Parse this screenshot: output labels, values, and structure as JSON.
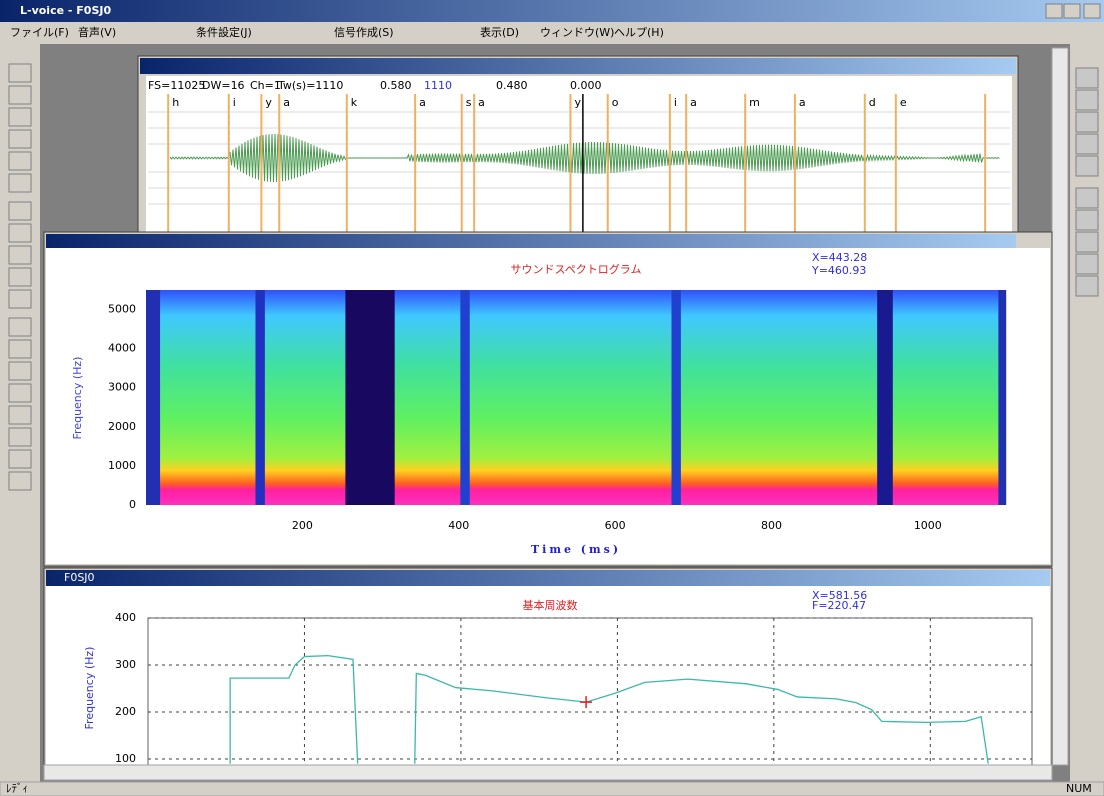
{
  "window": {
    "title": "L-voice - F0SJ0",
    "menu": [
      "ファイル(F)",
      "音声(V)",
      "条件設定(J)",
      "信号作成(S)",
      "表示(D)",
      "ウィンドウ(W)",
      "ヘルプ(H)"
    ],
    "status": "ﾚﾃﾞｨ",
    "status_right": "NUM"
  },
  "waveform": {
    "info": [
      "FS=11025",
      "DW=16",
      "Ch=1",
      "Tw(s)=1110",
      "0.580",
      "1110",
      "0.480",
      "0.000"
    ],
    "xlim": [
      0,
      1110
    ],
    "phonemes": [
      {
        "t": 26,
        "label": "h"
      },
      {
        "t": 104,
        "label": "i"
      },
      {
        "t": 146,
        "label": "y"
      },
      {
        "t": 169,
        "label": "a"
      },
      {
        "t": 256,
        "label": "k"
      },
      {
        "t": 344,
        "label": "a"
      },
      {
        "t": 404,
        "label": "s"
      },
      {
        "t": 420,
        "label": "a"
      },
      {
        "t": 544,
        "label": "y"
      },
      {
        "t": 592,
        "label": "o"
      },
      {
        "t": 672,
        "label": "i"
      },
      {
        "t": 693,
        "label": "a"
      },
      {
        "t": 769,
        "label": "m"
      },
      {
        "t": 833,
        "label": "a"
      },
      {
        "t": 923,
        "label": "d"
      },
      {
        "t": 963,
        "label": "e"
      },
      {
        "t": 1078,
        "label": null
      }
    ],
    "cursor_t": 560
  },
  "spectrogram": {
    "title": "サウンドスペクトログラム",
    "cursor": [
      "X=443.28",
      "Y=460.93"
    ],
    "ylabel": "Frequency (Hz)",
    "xlabel": "Time (ms)",
    "xlim": [
      0,
      1100
    ],
    "ylim": [
      0,
      5500
    ],
    "xticks": [
      200,
      400,
      600,
      800,
      1000
    ],
    "yticks": [
      0,
      1000,
      2000,
      3000,
      4000,
      5000
    ]
  },
  "f0": {
    "window_title": "F0SJ0",
    "title": "基本周波数",
    "cursor": [
      "X=581.56",
      "F=220.47"
    ],
    "ylabel": "Frequency (Hz)",
    "xlim": [
      0,
      1130
    ],
    "ylim": [
      90,
      400
    ],
    "xticks": [
      200,
      400,
      600,
      800,
      1000
    ],
    "yticks": [
      100,
      200,
      300,
      400
    ],
    "color": "#3cb8a8",
    "x": [
      105,
      105,
      180,
      188,
      200,
      230,
      262,
      268,
      null,
      341,
      343,
      355,
      393,
      440,
      510,
      560,
      597,
      635,
      690,
      765,
      805,
      830,
      880,
      905,
      925,
      938,
      995,
      1045,
      1065,
      1074
    ],
    "values": [
      90,
      272,
      272,
      300,
      318,
      320,
      312,
      90,
      null,
      90,
      282,
      278,
      252,
      245,
      230,
      221,
      240,
      263,
      270,
      260,
      248,
      232,
      228,
      220,
      205,
      180,
      178,
      180,
      190,
      90
    ],
    "cursor_point": [
      560,
      221
    ]
  }
}
